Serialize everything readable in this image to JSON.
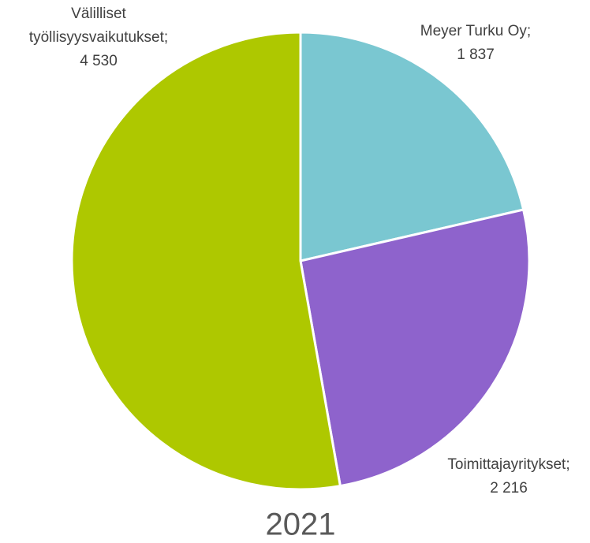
{
  "chart_data": {
    "type": "pie",
    "title": "2021",
    "categories": [
      "Meyer Turku Oy;",
      "Toimittajayritykset;",
      "Välilliset työllisyysvaikutukset;"
    ],
    "values": [
      1837,
      2216,
      4530
    ],
    "value_labels": [
      "1 837",
      "2 216",
      "4 530"
    ],
    "colors": [
      "#7ac7d1",
      "#8e63cc",
      "#aec800"
    ]
  }
}
